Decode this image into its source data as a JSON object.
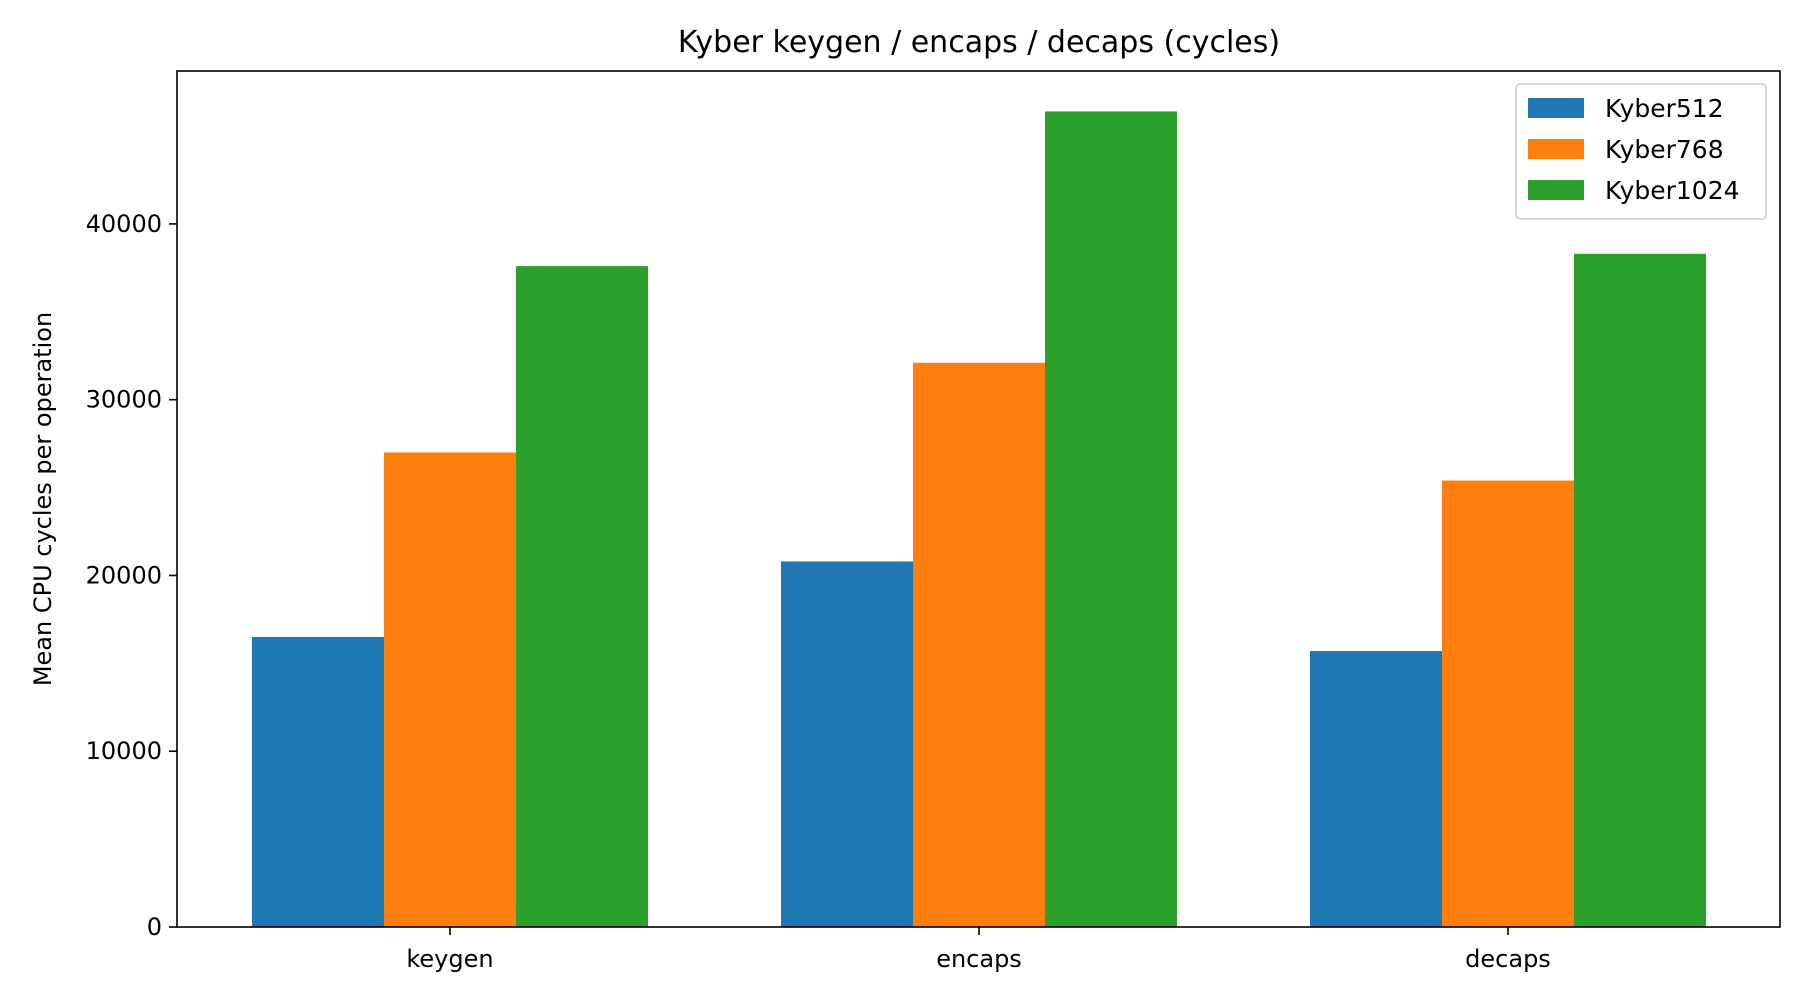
{
  "chart_data": {
    "type": "bar",
    "title": "Kyber keygen / encaps / decaps (cycles)",
    "xlabel": "",
    "ylabel": "Mean CPU cycles per operation",
    "categories": [
      "keygen",
      "encaps",
      "decaps"
    ],
    "series": [
      {
        "name": "Kyber512",
        "color": "#1f77b4",
        "values": [
          16500,
          20800,
          15700
        ]
      },
      {
        "name": "Kyber768",
        "color": "#ff7f0e",
        "values": [
          27000,
          32100,
          25400
        ]
      },
      {
        "name": "Kyber1024",
        "color": "#2ca02c",
        "values": [
          37600,
          46400,
          38300
        ]
      }
    ],
    "ylim": [
      0,
      48700
    ],
    "yticks": [
      0,
      10000,
      20000,
      30000,
      40000
    ],
    "ytick_labels": [
      "0",
      "10000",
      "20000",
      "30000",
      "40000"
    ],
    "grid": false,
    "legend_position": "top-right"
  }
}
